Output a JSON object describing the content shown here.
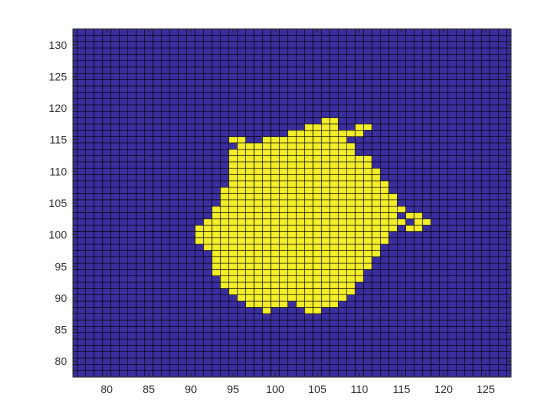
{
  "chart_data": {
    "type": "heatmap",
    "title": "",
    "xlabel": "",
    "ylabel": "",
    "xlim": [
      76,
      128
    ],
    "ylim": [
      77.5,
      132.5
    ],
    "x_ticks": [
      80,
      85,
      90,
      95,
      100,
      105,
      110,
      115,
      120,
      125
    ],
    "y_ticks": [
      80,
      85,
      90,
      95,
      100,
      105,
      110,
      115,
      120,
      125,
      130
    ],
    "colors": {
      "background": "#3b2fa0",
      "region": "#f5ef2a",
      "edge": "#000000",
      "axis": "#262626"
    },
    "grid_edges": true,
    "region_rows": [
      {
        "y": 88,
        "x": [
          [
            99,
            99
          ],
          [
            104,
            105
          ]
        ]
      },
      {
        "y": 89,
        "x": [
          [
            97,
            101
          ],
          [
            103,
            107
          ]
        ]
      },
      {
        "y": 90,
        "x": [
          [
            96,
            108
          ]
        ]
      },
      {
        "y": 91,
        "x": [
          [
            95,
            109
          ]
        ]
      },
      {
        "y": 92,
        "x": [
          [
            94,
            109
          ]
        ]
      },
      {
        "y": 93,
        "x": [
          [
            94,
            110
          ]
        ]
      },
      {
        "y": 94,
        "x": [
          [
            93,
            110
          ]
        ]
      },
      {
        "y": 95,
        "x": [
          [
            93,
            111
          ]
        ]
      },
      {
        "y": 96,
        "x": [
          [
            93,
            111
          ]
        ]
      },
      {
        "y": 97,
        "x": [
          [
            93,
            112
          ]
        ]
      },
      {
        "y": 98,
        "x": [
          [
            92,
            112
          ]
        ]
      },
      {
        "y": 99,
        "x": [
          [
            91,
            113
          ]
        ]
      },
      {
        "y": 100,
        "x": [
          [
            91,
            113
          ]
        ]
      },
      {
        "y": 101,
        "x": [
          [
            91,
            114
          ],
          [
            116,
            117
          ]
        ]
      },
      {
        "y": 102,
        "x": [
          [
            92,
            115
          ],
          [
            117,
            118
          ]
        ]
      },
      {
        "y": 103,
        "x": [
          [
            93,
            114
          ],
          [
            116,
            117
          ]
        ]
      },
      {
        "y": 104,
        "x": [
          [
            93,
            115
          ]
        ]
      },
      {
        "y": 105,
        "x": [
          [
            94,
            114
          ]
        ]
      },
      {
        "y": 106,
        "x": [
          [
            94,
            114
          ]
        ]
      },
      {
        "y": 107,
        "x": [
          [
            94,
            113
          ]
        ]
      },
      {
        "y": 108,
        "x": [
          [
            95,
            113
          ]
        ]
      },
      {
        "y": 109,
        "x": [
          [
            95,
            112
          ]
        ]
      },
      {
        "y": 110,
        "x": [
          [
            95,
            112
          ]
        ]
      },
      {
        "y": 111,
        "x": [
          [
            95,
            111
          ]
        ]
      },
      {
        "y": 112,
        "x": [
          [
            95,
            111
          ]
        ]
      },
      {
        "y": 113,
        "x": [
          [
            95,
            109
          ]
        ]
      },
      {
        "y": 114,
        "x": [
          [
            96,
            109
          ]
        ]
      },
      {
        "y": 115,
        "x": [
          [
            95,
            96
          ],
          [
            99,
            108
          ]
        ]
      },
      {
        "y": 116,
        "x": [
          [
            102,
            110
          ]
        ]
      },
      {
        "y": 117,
        "x": [
          [
            104,
            107
          ],
          [
            110,
            111
          ]
        ]
      },
      {
        "y": 118,
        "x": [
          [
            106,
            107
          ]
        ]
      }
    ]
  }
}
